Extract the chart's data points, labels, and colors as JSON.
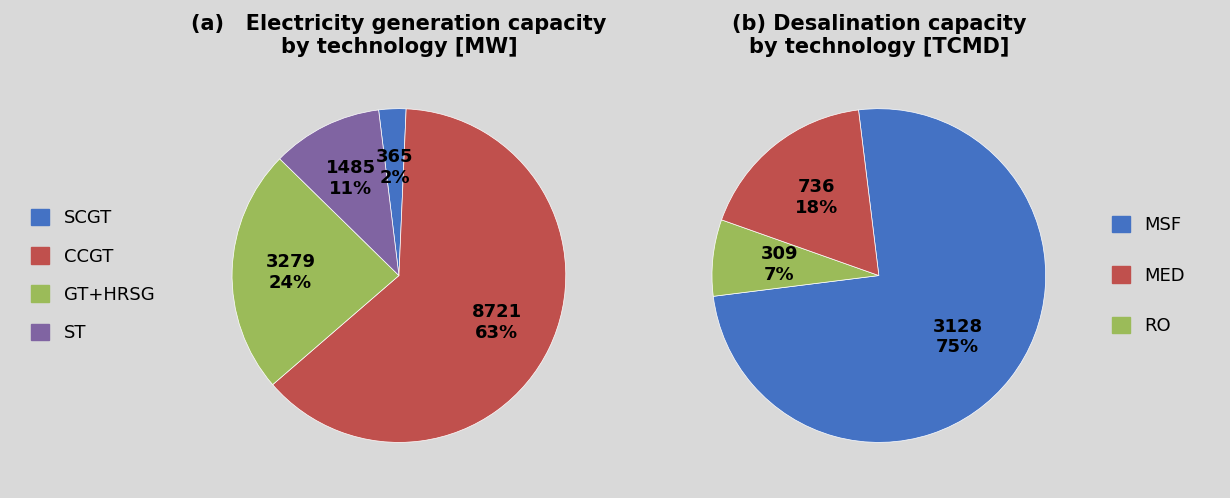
{
  "chart_a": {
    "title": "(a)   Electricity generation capacity\nby technology [MW]",
    "labels": [
      "SCGT",
      "CCGT",
      "GT+HRSG",
      "ST"
    ],
    "values": [
      365,
      8721,
      3279,
      1485
    ],
    "percentages": [
      "2%",
      "63%",
      "24%",
      "11%"
    ],
    "colors": [
      "#4472C4",
      "#C0504D",
      "#9BBB59",
      "#8064A2"
    ],
    "legend_labels": [
      "SCGT",
      "CCGT",
      "GT+HRSG",
      "ST"
    ],
    "startangle": 97
  },
  "chart_b": {
    "title": "(b) Desalination capacity\nby technology [TCMD]",
    "labels": [
      "MSF",
      "RO",
      "MED"
    ],
    "values": [
      3128,
      309,
      736
    ],
    "percentages": [
      "75%",
      "7%",
      "18%"
    ],
    "colors": [
      "#4472C4",
      "#9BBB59",
      "#C0504D"
    ],
    "legend_labels": [
      "MSF",
      "MED",
      "RO"
    ],
    "legend_colors": [
      "#4472C4",
      "#C0504D",
      "#9BBB59"
    ],
    "startangle": 97
  },
  "bg_color": "#D9D9D9",
  "label_fontsize": 13,
  "legend_fontsize": 13,
  "title_fontsize": 15
}
